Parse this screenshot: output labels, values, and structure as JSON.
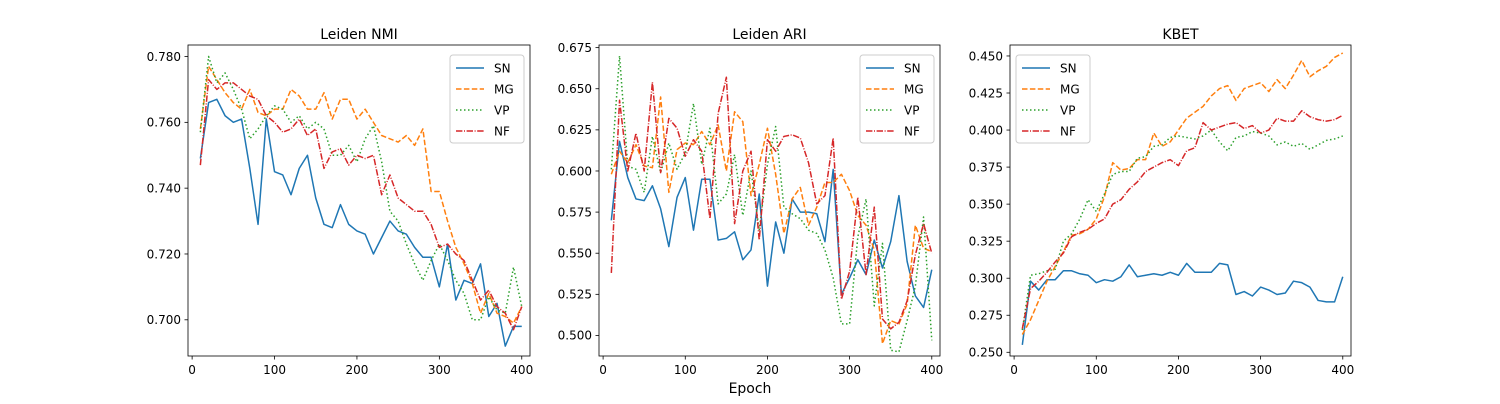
{
  "figure": {
    "xlabel": "Epoch"
  },
  "chart_data": [
    {
      "type": "line",
      "title": "Leiden NMI",
      "xlim": [
        -5,
        410
      ],
      "ylim": [
        0.689,
        0.7835
      ],
      "xticks": [
        0,
        100,
        200,
        300,
        400
      ],
      "yticks": [
        0.7,
        0.72,
        0.74,
        0.76,
        0.78
      ],
      "ytick_labels": [
        "0.700",
        "0.720",
        "0.740",
        "0.760",
        "0.780"
      ],
      "legend_position": "top-right",
      "x": [
        10,
        20,
        30,
        40,
        50,
        60,
        70,
        80,
        90,
        100,
        110,
        120,
        130,
        140,
        150,
        160,
        170,
        180,
        190,
        200,
        210,
        220,
        230,
        240,
        250,
        260,
        270,
        280,
        290,
        300,
        310,
        320,
        330,
        340,
        350,
        360,
        370,
        380,
        390,
        400
      ],
      "series": [
        {
          "name": "SN",
          "color": "#1f77b4",
          "dash": "solid",
          "values": [
            0.749,
            0.766,
            0.767,
            0.762,
            0.76,
            0.761,
            0.746,
            0.729,
            0.761,
            0.745,
            0.744,
            0.738,
            0.746,
            0.75,
            0.737,
            0.729,
            0.728,
            0.735,
            0.729,
            0.727,
            0.726,
            0.72,
            0.725,
            0.73,
            0.727,
            0.726,
            0.722,
            0.719,
            0.719,
            0.71,
            0.723,
            0.706,
            0.712,
            0.711,
            0.717,
            0.701,
            0.705,
            0.692,
            0.698,
            0.698
          ]
        },
        {
          "name": "MG",
          "color": "#ff7f0e",
          "dash": "dashed",
          "values": [
            0.758,
            0.777,
            0.773,
            0.769,
            0.766,
            0.764,
            0.77,
            0.763,
            0.762,
            0.764,
            0.764,
            0.77,
            0.768,
            0.764,
            0.764,
            0.769,
            0.761,
            0.767,
            0.767,
            0.761,
            0.764,
            0.76,
            0.756,
            0.755,
            0.754,
            0.756,
            0.753,
            0.758,
            0.739,
            0.739,
            0.73,
            0.722,
            0.717,
            0.711,
            0.702,
            0.708,
            0.702,
            0.701,
            0.699,
            0.704
          ]
        },
        {
          "name": "VP",
          "color": "#2ca02c",
          "dash": "dotted",
          "values": [
            0.757,
            0.78,
            0.772,
            0.775,
            0.77,
            0.764,
            0.755,
            0.758,
            0.762,
            0.765,
            0.764,
            0.76,
            0.762,
            0.758,
            0.76,
            0.758,
            0.75,
            0.75,
            0.753,
            0.748,
            0.755,
            0.759,
            0.748,
            0.733,
            0.73,
            0.723,
            0.717,
            0.712,
            0.718,
            0.723,
            0.718,
            0.712,
            0.708,
            0.7,
            0.7,
            0.707,
            0.703,
            0.702,
            0.716,
            0.704
          ]
        },
        {
          "name": "NF",
          "color": "#d62728",
          "dash": "dashdot",
          "values": [
            0.747,
            0.773,
            0.77,
            0.772,
            0.772,
            0.77,
            0.768,
            0.767,
            0.762,
            0.76,
            0.757,
            0.758,
            0.761,
            0.756,
            0.758,
            0.746,
            0.751,
            0.752,
            0.747,
            0.75,
            0.749,
            0.75,
            0.738,
            0.744,
            0.737,
            0.735,
            0.733,
            0.733,
            0.729,
            0.722,
            0.723,
            0.72,
            0.718,
            0.712,
            0.706,
            0.709,
            0.704,
            0.702,
            0.697,
            0.704
          ]
        }
      ]
    },
    {
      "type": "line",
      "title": "Leiden ARI",
      "xlim": [
        -5,
        410
      ],
      "ylim": [
        0.4875,
        0.6766
      ],
      "xticks": [
        0,
        100,
        200,
        300,
        400
      ],
      "yticks": [
        0.5,
        0.525,
        0.55,
        0.575,
        0.6,
        0.625,
        0.65,
        0.675
      ],
      "ytick_labels": [
        "0.500",
        "0.525",
        "0.550",
        "0.575",
        "0.600",
        "0.625",
        "0.650",
        "0.675"
      ],
      "legend_position": "top-right",
      "x": [
        10,
        20,
        30,
        40,
        50,
        60,
        70,
        80,
        90,
        100,
        110,
        120,
        130,
        140,
        150,
        160,
        170,
        180,
        190,
        200,
        210,
        220,
        230,
        240,
        250,
        260,
        270,
        280,
        290,
        300,
        310,
        320,
        330,
        340,
        350,
        360,
        370,
        380,
        390,
        400
      ],
      "series": [
        {
          "name": "SN",
          "color": "#1f77b4",
          "dash": "solid",
          "values": [
            0.57,
            0.618,
            0.596,
            0.583,
            0.582,
            0.591,
            0.577,
            0.554,
            0.584,
            0.596,
            0.564,
            0.595,
            0.595,
            0.558,
            0.559,
            0.563,
            0.546,
            0.552,
            0.586,
            0.53,
            0.569,
            0.55,
            0.583,
            0.575,
            0.575,
            0.574,
            0.557,
            0.601,
            0.525,
            0.535,
            0.546,
            0.537,
            0.558,
            0.541,
            0.557,
            0.585,
            0.545,
            0.524,
            0.517,
            0.54
          ]
        },
        {
          "name": "MG",
          "color": "#ff7f0e",
          "dash": "dashed",
          "values": [
            0.598,
            0.612,
            0.605,
            0.616,
            0.603,
            0.602,
            0.645,
            0.587,
            0.613,
            0.617,
            0.616,
            0.624,
            0.616,
            0.628,
            0.6,
            0.636,
            0.63,
            0.585,
            0.604,
            0.626,
            0.598,
            0.562,
            0.583,
            0.59,
            0.567,
            0.578,
            0.593,
            0.593,
            0.598,
            0.588,
            0.573,
            0.567,
            0.552,
            0.495,
            0.509,
            0.507,
            0.519,
            0.567,
            0.553,
            0.551
          ]
        },
        {
          "name": "VP",
          "color": "#2ca02c",
          "dash": "dotted",
          "values": [
            0.601,
            0.67,
            0.603,
            0.601,
            0.587,
            0.621,
            0.599,
            0.617,
            0.601,
            0.611,
            0.641,
            0.604,
            0.626,
            0.58,
            0.586,
            0.61,
            0.573,
            0.6,
            0.564,
            0.604,
            0.627,
            0.578,
            0.574,
            0.571,
            0.564,
            0.562,
            0.552,
            0.535,
            0.507,
            0.507,
            0.56,
            0.583,
            0.518,
            0.556,
            0.491,
            0.49,
            0.509,
            0.53,
            0.572,
            0.497
          ]
        },
        {
          "name": "NF",
          "color": "#d62728",
          "dash": "dashdot",
          "values": [
            0.538,
            0.643,
            0.6,
            0.623,
            0.6,
            0.654,
            0.599,
            0.632,
            0.626,
            0.609,
            0.619,
            0.612,
            0.571,
            0.635,
            0.657,
            0.568,
            0.6,
            0.612,
            0.558,
            0.619,
            0.612,
            0.621,
            0.622,
            0.62,
            0.605,
            0.58,
            0.585,
            0.62,
            0.522,
            0.539,
            0.584,
            0.537,
            0.578,
            0.51,
            0.504,
            0.508,
            0.521,
            0.549,
            0.568,
            0.55
          ]
        }
      ]
    },
    {
      "type": "line",
      "title": "KBET",
      "xlim": [
        -5,
        410
      ],
      "ylim": [
        0.2475,
        0.4574
      ],
      "xticks": [
        0,
        100,
        200,
        300,
        400
      ],
      "yticks": [
        0.25,
        0.275,
        0.3,
        0.325,
        0.35,
        0.375,
        0.4,
        0.425,
        0.45
      ],
      "ytick_labels": [
        "0.250",
        "0.275",
        "0.300",
        "0.325",
        "0.350",
        "0.375",
        "0.400",
        "0.425",
        "0.450"
      ],
      "legend_position": "top-left",
      "x": [
        10,
        20,
        30,
        40,
        50,
        60,
        70,
        80,
        90,
        100,
        110,
        120,
        130,
        140,
        150,
        160,
        170,
        180,
        190,
        200,
        210,
        220,
        230,
        240,
        250,
        260,
        270,
        280,
        290,
        300,
        310,
        320,
        330,
        340,
        350,
        360,
        370,
        380,
        390,
        400
      ],
      "series": [
        {
          "name": "SN",
          "color": "#1f77b4",
          "dash": "solid",
          "values": [
            0.255,
            0.298,
            0.292,
            0.299,
            0.299,
            0.305,
            0.305,
            0.303,
            0.302,
            0.297,
            0.299,
            0.298,
            0.301,
            0.309,
            0.301,
            0.302,
            0.303,
            0.302,
            0.304,
            0.302,
            0.31,
            0.304,
            0.304,
            0.304,
            0.31,
            0.309,
            0.289,
            0.291,
            0.288,
            0.294,
            0.292,
            0.289,
            0.29,
            0.298,
            0.297,
            0.294,
            0.285,
            0.284,
            0.284,
            0.301
          ]
        },
        {
          "name": "MG",
          "color": "#ff7f0e",
          "dash": "dashed",
          "values": [
            0.262,
            0.272,
            0.285,
            0.298,
            0.308,
            0.318,
            0.329,
            0.33,
            0.333,
            0.34,
            0.355,
            0.378,
            0.373,
            0.374,
            0.38,
            0.38,
            0.398,
            0.389,
            0.392,
            0.4,
            0.408,
            0.412,
            0.416,
            0.423,
            0.428,
            0.43,
            0.42,
            0.428,
            0.43,
            0.432,
            0.426,
            0.434,
            0.428,
            0.437,
            0.447,
            0.436,
            0.44,
            0.443,
            0.449,
            0.452
          ]
        },
        {
          "name": "VP",
          "color": "#2ca02c",
          "dash": "dotted",
          "values": [
            0.265,
            0.302,
            0.303,
            0.305,
            0.306,
            0.325,
            0.33,
            0.34,
            0.353,
            0.345,
            0.357,
            0.37,
            0.372,
            0.372,
            0.381,
            0.382,
            0.389,
            0.39,
            0.395,
            0.396,
            0.395,
            0.394,
            0.396,
            0.4,
            0.392,
            0.386,
            0.395,
            0.396,
            0.399,
            0.398,
            0.396,
            0.39,
            0.392,
            0.389,
            0.391,
            0.387,
            0.39,
            0.393,
            0.394,
            0.396
          ]
        },
        {
          "name": "NF",
          "color": "#d62728",
          "dash": "dashdot",
          "values": [
            0.266,
            0.293,
            0.298,
            0.304,
            0.311,
            0.317,
            0.328,
            0.331,
            0.333,
            0.337,
            0.34,
            0.35,
            0.353,
            0.36,
            0.365,
            0.372,
            0.375,
            0.378,
            0.38,
            0.376,
            0.386,
            0.388,
            0.405,
            0.4,
            0.402,
            0.404,
            0.405,
            0.401,
            0.403,
            0.398,
            0.4,
            0.408,
            0.406,
            0.406,
            0.413,
            0.409,
            0.407,
            0.406,
            0.407,
            0.41
          ]
        }
      ]
    }
  ]
}
